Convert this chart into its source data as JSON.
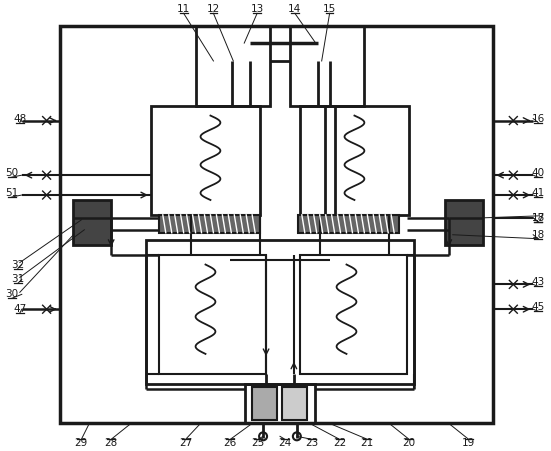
{
  "bg_color": "#ffffff",
  "lc": "#1a1a1a",
  "fig_width": 5.51,
  "fig_height": 4.51
}
